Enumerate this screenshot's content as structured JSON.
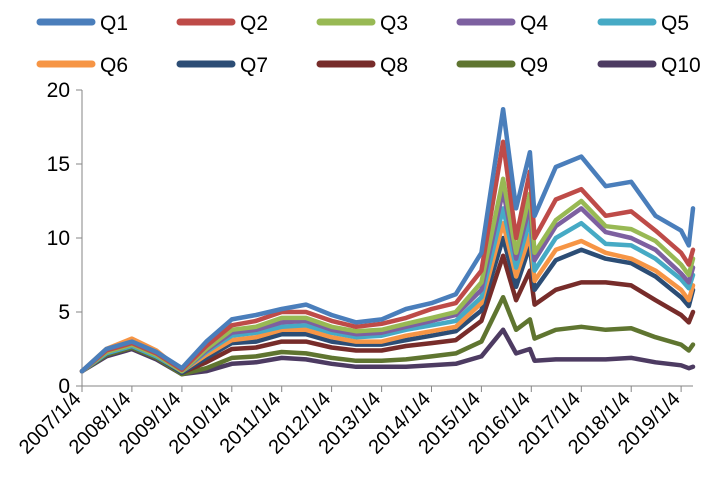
{
  "chart_data": {
    "type": "line",
    "title": "",
    "xlabel": "",
    "ylabel": "",
    "ylim": [
      0,
      20
    ],
    "yticks": [
      "0",
      "5",
      "10",
      "15",
      "20"
    ],
    "xticks": [
      "2007/1/4",
      "2008/1/4",
      "2009/1/4",
      "2010/1/4",
      "2011/1/4",
      "2012/1/4",
      "2013/1/4",
      "2014/1/4",
      "2015/1/4",
      "2016/1/4",
      "2017/1/4",
      "2018/1/4",
      "2019/1/4"
    ],
    "x_range": [
      "2007-01-04",
      "2019-04-01"
    ],
    "grid": false,
    "legend": "top",
    "x": [
      "2007-01-04",
      "2007-07-01",
      "2008-01-04",
      "2008-07-01",
      "2009-01-04",
      "2009-07-01",
      "2010-01-04",
      "2010-07-01",
      "2011-01-04",
      "2011-07-01",
      "2012-01-04",
      "2012-07-01",
      "2013-01-04",
      "2013-07-01",
      "2014-01-04",
      "2014-07-01",
      "2015-01-04",
      "2015-06-12",
      "2015-09-15",
      "2015-12-25",
      "2016-01-28",
      "2016-07-01",
      "2017-01-04",
      "2017-07-01",
      "2018-01-04",
      "2018-07-01",
      "2019-01-04",
      "2019-03-01",
      "2019-04-01"
    ],
    "series": [
      {
        "name": "Q1",
        "color": "#4a7ebb",
        "values": [
          1.0,
          2.5,
          3.0,
          2.3,
          1.2,
          3.0,
          4.5,
          4.8,
          5.2,
          5.5,
          4.8,
          4.3,
          4.5,
          5.2,
          5.6,
          6.2,
          9.0,
          18.7,
          12.0,
          15.8,
          11.5,
          14.8,
          15.5,
          13.5,
          13.8,
          11.5,
          10.5,
          9.5,
          12.0
        ]
      },
      {
        "name": "Q2",
        "color": "#be4b48",
        "values": [
          1.0,
          2.4,
          2.9,
          2.2,
          1.1,
          2.7,
          4.1,
          4.4,
          5.0,
          5.0,
          4.4,
          4.0,
          4.2,
          4.6,
          5.2,
          5.6,
          7.8,
          16.5,
          10.0,
          14.5,
          10.0,
          12.6,
          13.3,
          11.5,
          11.8,
          10.5,
          9.0,
          8.2,
          9.2
        ]
      },
      {
        "name": "Q3",
        "color": "#98b954",
        "values": [
          1.0,
          2.3,
          2.8,
          2.1,
          1.0,
          2.5,
          3.8,
          4.0,
          4.6,
          4.6,
          4.0,
          3.7,
          3.8,
          4.2,
          4.6,
          5.0,
          7.0,
          14.0,
          9.0,
          13.0,
          9.0,
          11.2,
          12.5,
          10.8,
          10.6,
          9.8,
          8.2,
          7.5,
          8.6
        ]
      },
      {
        "name": "Q4",
        "color": "#7d60a0",
        "values": [
          1.0,
          2.3,
          2.8,
          2.1,
          1.0,
          2.4,
          3.6,
          3.8,
          4.3,
          4.4,
          3.8,
          3.5,
          3.6,
          4.0,
          4.4,
          4.8,
          6.5,
          13.2,
          8.6,
          12.2,
          8.5,
          10.8,
          12.0,
          10.4,
          10.0,
          9.2,
          7.6,
          7.0,
          8.0
        ]
      },
      {
        "name": "Q5",
        "color": "#46aac5",
        "values": [
          1.0,
          2.2,
          2.7,
          2.0,
          1.0,
          2.3,
          3.4,
          3.6,
          4.0,
          4.1,
          3.6,
          3.3,
          3.4,
          3.8,
          4.1,
          4.4,
          6.0,
          12.0,
          8.0,
          11.2,
          7.8,
          10.0,
          11.0,
          9.6,
          9.5,
          8.6,
          7.2,
          6.6,
          7.5
        ]
      },
      {
        "name": "Q6",
        "color": "#f69545",
        "values": [
          1.0,
          2.5,
          3.2,
          2.4,
          1.0,
          2.1,
          3.1,
          3.3,
          3.8,
          3.8,
          3.3,
          3.0,
          3.0,
          3.4,
          3.7,
          4.0,
          5.6,
          11.0,
          7.4,
          10.2,
          7.1,
          9.2,
          9.8,
          9.0,
          8.6,
          7.8,
          6.5,
          5.8,
          6.8
        ]
      },
      {
        "name": "Q7",
        "color": "#2c4d75",
        "values": [
          1.0,
          2.2,
          2.7,
          2.0,
          0.9,
          1.9,
          2.9,
          3.0,
          3.5,
          3.5,
          3.0,
          2.8,
          2.8,
          3.1,
          3.4,
          3.7,
          5.1,
          10.0,
          6.7,
          9.5,
          6.5,
          8.5,
          9.2,
          8.6,
          8.3,
          7.4,
          6.0,
          5.4,
          6.5
        ]
      },
      {
        "name": "Q8",
        "color": "#772c2a",
        "values": [
          1.0,
          2.2,
          2.7,
          2.0,
          0.9,
          1.6,
          2.5,
          2.6,
          3.0,
          3.0,
          2.6,
          2.4,
          2.4,
          2.7,
          2.9,
          3.1,
          4.4,
          8.8,
          5.8,
          7.8,
          5.5,
          6.5,
          7.0,
          7.0,
          6.8,
          5.8,
          4.8,
          4.3,
          5.0
        ]
      },
      {
        "name": "Q9",
        "color": "#5f7530",
        "values": [
          1.0,
          2.1,
          2.6,
          1.9,
          0.8,
          1.2,
          1.9,
          2.0,
          2.3,
          2.2,
          1.9,
          1.7,
          1.7,
          1.8,
          2.0,
          2.2,
          3.0,
          6.0,
          3.8,
          4.5,
          3.2,
          3.8,
          4.0,
          3.8,
          3.9,
          3.3,
          2.8,
          2.4,
          2.8
        ]
      },
      {
        "name": "Q10",
        "color": "#4d3b62",
        "values": [
          1.0,
          2.0,
          2.5,
          1.8,
          0.8,
          1.0,
          1.5,
          1.6,
          1.9,
          1.8,
          1.5,
          1.3,
          1.3,
          1.3,
          1.4,
          1.5,
          2.0,
          3.8,
          2.2,
          2.5,
          1.7,
          1.8,
          1.8,
          1.8,
          1.9,
          1.6,
          1.4,
          1.2,
          1.3
        ]
      }
    ]
  }
}
